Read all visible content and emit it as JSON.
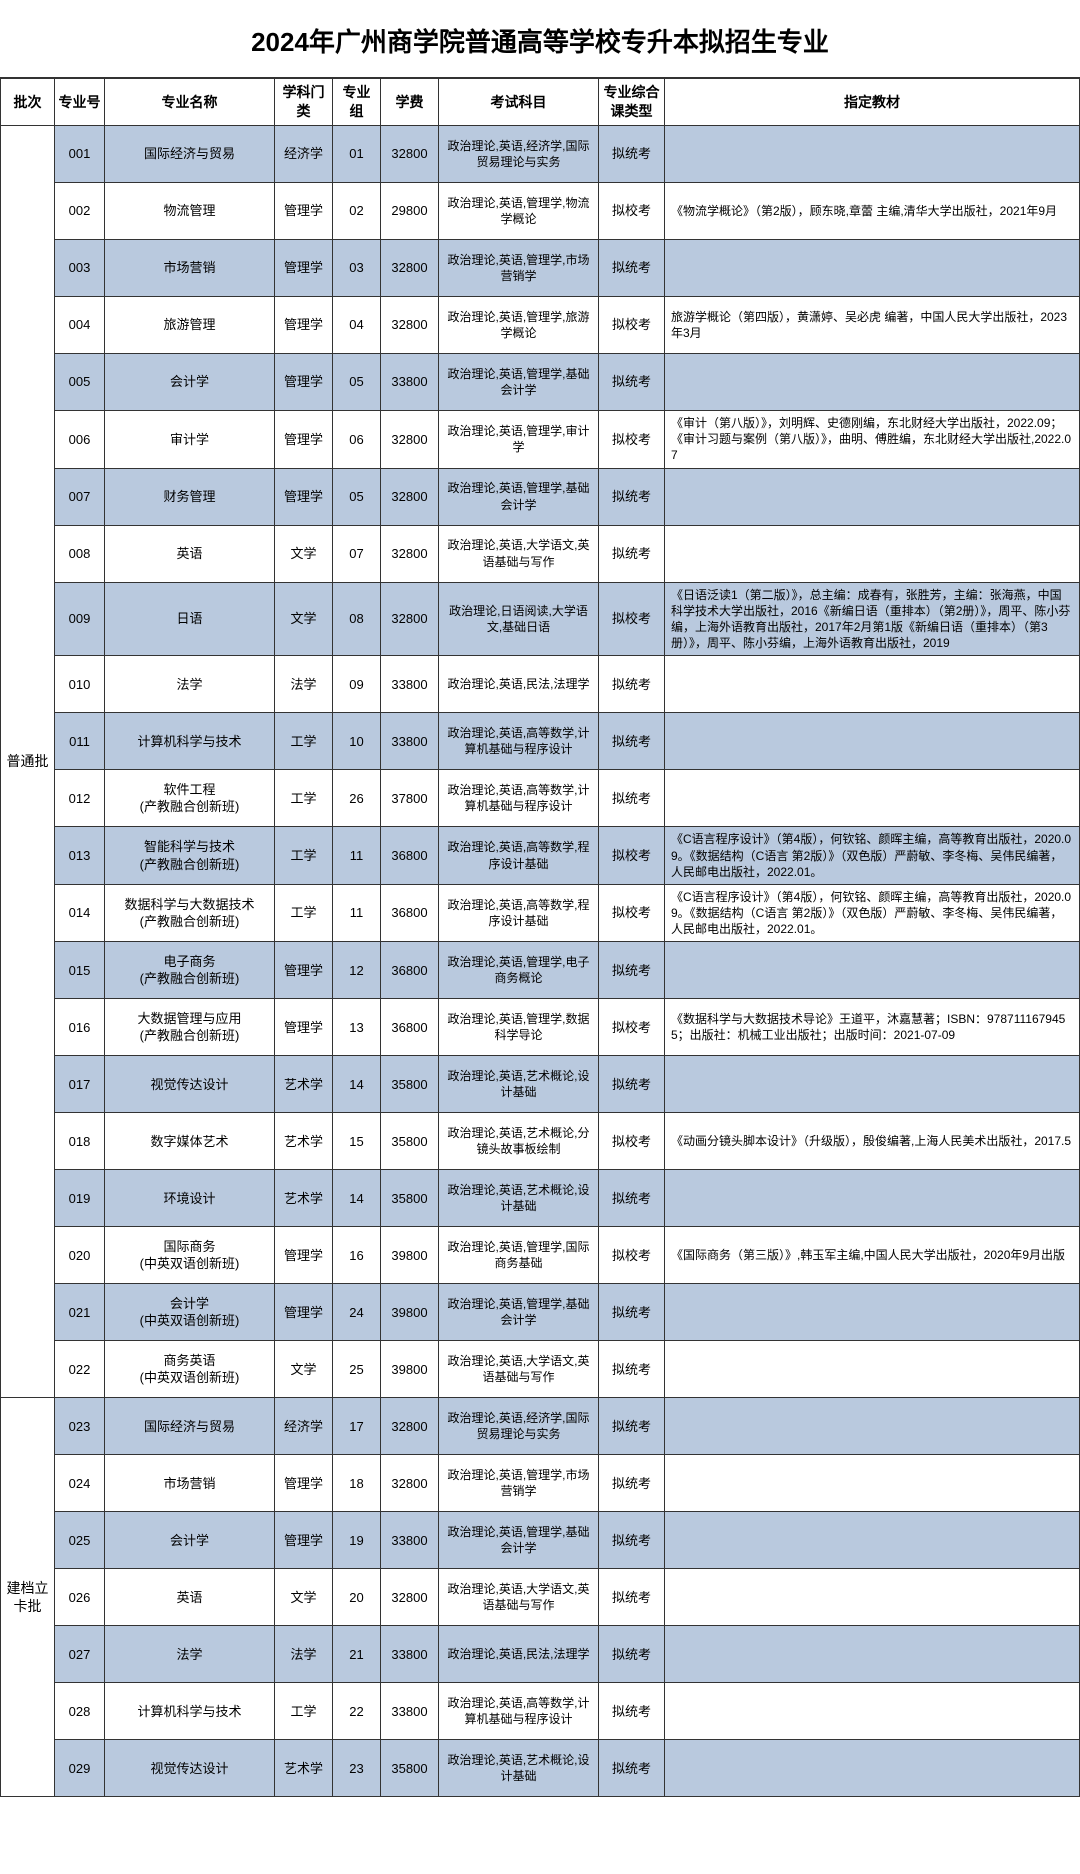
{
  "title": "2024年广州商学院普通高等学校专升本拟招生专业",
  "headers": {
    "batch": "批次",
    "code": "专业号",
    "name": "专业名称",
    "disc": "学科门类",
    "group": "专业组",
    "fee": "学费",
    "subj": "考试科目",
    "type": "专业综合课类型",
    "book": "指定教材"
  },
  "batch1_label": "普通批",
  "batch2_label": "建档立卡批",
  "rows1": [
    {
      "c": "001",
      "n": "国际经济与贸易",
      "d": "经济学",
      "g": "01",
      "f": "32800",
      "s": "政治理论,英语,经济学,国际贸易理论与实务",
      "t": "拟统考",
      "b": ""
    },
    {
      "c": "002",
      "n": "物流管理",
      "d": "管理学",
      "g": "02",
      "f": "29800",
      "s": "政治理论,英语,管理学,物流学概论",
      "t": "拟校考",
      "b": "《物流学概论》（第2版），顾东晓,章蕾 主编,清华大学出版社，2021年9月"
    },
    {
      "c": "003",
      "n": "市场营销",
      "d": "管理学",
      "g": "03",
      "f": "32800",
      "s": "政治理论,英语,管理学,市场营销学",
      "t": "拟统考",
      "b": ""
    },
    {
      "c": "004",
      "n": "旅游管理",
      "d": "管理学",
      "g": "04",
      "f": "32800",
      "s": "政治理论,英语,管理学,旅游学概论",
      "t": "拟校考",
      "b": "旅游学概论（第四版），黄潇婷、吴必虎 编著，中国人民大学出版社，2023年3月"
    },
    {
      "c": "005",
      "n": "会计学",
      "d": "管理学",
      "g": "05",
      "f": "33800",
      "s": "政治理论,英语,管理学,基础会计学",
      "t": "拟统考",
      "b": ""
    },
    {
      "c": "006",
      "n": "审计学",
      "d": "管理学",
      "g": "06",
      "f": "32800",
      "s": "政治理论,英语,管理学,审计学",
      "t": "拟校考",
      "b": "《审计（第八版）》，刘明辉、史德刚编，东北财经大学出版社，2022.09；《审计习题与案例（第八版）》，曲明、傅胜编，东北财经大学出版社,2022.07"
    },
    {
      "c": "007",
      "n": "财务管理",
      "d": "管理学",
      "g": "05",
      "f": "32800",
      "s": "政治理论,英语,管理学,基础会计学",
      "t": "拟统考",
      "b": ""
    },
    {
      "c": "008",
      "n": "英语",
      "d": "文学",
      "g": "07",
      "f": "32800",
      "s": "政治理论,英语,大学语文,英语基础与写作",
      "t": "拟统考",
      "b": ""
    },
    {
      "c": "009",
      "n": "日语",
      "d": "文学",
      "g": "08",
      "f": "32800",
      "s": "政治理论,日语阅读,大学语文,基础日语",
      "t": "拟校考",
      "b": "《日语泛读1（第二版）》，总主编：成春有，张胜芳，主编：张海燕，中国科学技术大学出版社，2016《新编日语（重排本）（第2册）》，周平、陈小芬编，上海外语教育出版社，2017年2月第1版《新编日语（重排本）（第3册）》，周平、陈小芬编，上海外语教育出版社，2019"
    },
    {
      "c": "010",
      "n": "法学",
      "d": "法学",
      "g": "09",
      "f": "33800",
      "s": "政治理论,英语,民法,法理学",
      "t": "拟统考",
      "b": ""
    },
    {
      "c": "011",
      "n": "计算机科学与技术",
      "d": "工学",
      "g": "10",
      "f": "33800",
      "s": "政治理论,英语,高等数学,计算机基础与程序设计",
      "t": "拟统考",
      "b": ""
    },
    {
      "c": "012",
      "n": "软件工程\n(产教融合创新班)",
      "d": "工学",
      "g": "26",
      "f": "37800",
      "s": "政治理论,英语,高等数学,计算机基础与程序设计",
      "t": "拟统考",
      "b": ""
    },
    {
      "c": "013",
      "n": "智能科学与技术\n(产教融合创新班)",
      "d": "工学",
      "g": "11",
      "f": "36800",
      "s": "政治理论,英语,高等数学,程序设计基础",
      "t": "拟校考",
      "b": "《C语言程序设计》（第4版），何钦铭、颜晖主编，高等教育出版社，2020.09。《数据结构（C语言 第2版）》（双色版）严蔚敏、李冬梅、吴伟民编著，人民邮电出版社，2022.01。"
    },
    {
      "c": "014",
      "n": "数据科学与大数据技术\n(产教融合创新班)",
      "d": "工学",
      "g": "11",
      "f": "36800",
      "s": "政治理论,英语,高等数学,程序设计基础",
      "t": "拟校考",
      "b": "《C语言程序设计》（第4版），何钦铭、颜晖主编，高等教育出版社，2020.09。《数据结构（C语言 第2版）》（双色版）严蔚敏、李冬梅、吴伟民编著，人民邮电出版社，2022.01。"
    },
    {
      "c": "015",
      "n": "电子商务\n(产教融合创新班)",
      "d": "管理学",
      "g": "12",
      "f": "36800",
      "s": "政治理论,英语,管理学,电子商务概论",
      "t": "拟统考",
      "b": ""
    },
    {
      "c": "016",
      "n": "大数据管理与应用\n(产教融合创新班)",
      "d": "管理学",
      "g": "13",
      "f": "36800",
      "s": "政治理论,英语,管理学,数据科学导论",
      "t": "拟校考",
      "b": "《数据科学与大数据技术导论》王道平，沐嘉慧著；ISBN：9787111679455；出版社：机械工业出版社；出版时间：2021-07-09"
    },
    {
      "c": "017",
      "n": "视觉传达设计",
      "d": "艺术学",
      "g": "14",
      "f": "35800",
      "s": "政治理论,英语,艺术概论,设计基础",
      "t": "拟统考",
      "b": ""
    },
    {
      "c": "018",
      "n": "数字媒体艺术",
      "d": "艺术学",
      "g": "15",
      "f": "35800",
      "s": "政治理论,英语,艺术概论,分镜头故事板绘制",
      "t": "拟校考",
      "b": "《动画分镜头脚本设计》（升级版），殷俊编著,上海人民美术出版社，2017.5"
    },
    {
      "c": "019",
      "n": "环境设计",
      "d": "艺术学",
      "g": "14",
      "f": "35800",
      "s": "政治理论,英语,艺术概论,设计基础",
      "t": "拟统考",
      "b": ""
    },
    {
      "c": "020",
      "n": "国际商务\n(中英双语创新班)",
      "d": "管理学",
      "g": "16",
      "f": "39800",
      "s": "政治理论,英语,管理学,国际商务基础",
      "t": "拟校考",
      "b": "《国际商务（第三版）》,韩玉军主编,中国人民大学出版社，2020年9月出版"
    },
    {
      "c": "021",
      "n": "会计学\n(中英双语创新班)",
      "d": "管理学",
      "g": "24",
      "f": "39800",
      "s": "政治理论,英语,管理学,基础会计学",
      "t": "拟统考",
      "b": ""
    },
    {
      "c": "022",
      "n": "商务英语\n(中英双语创新班)",
      "d": "文学",
      "g": "25",
      "f": "39800",
      "s": "政治理论,英语,大学语文,英语基础与写作",
      "t": "拟统考",
      "b": ""
    }
  ],
  "rows2": [
    {
      "c": "023",
      "n": "国际经济与贸易",
      "d": "经济学",
      "g": "17",
      "f": "32800",
      "s": "政治理论,英语,经济学,国际贸易理论与实务",
      "t": "拟统考",
      "b": ""
    },
    {
      "c": "024",
      "n": "市场营销",
      "d": "管理学",
      "g": "18",
      "f": "32800",
      "s": "政治理论,英语,管理学,市场营销学",
      "t": "拟统考",
      "b": ""
    },
    {
      "c": "025",
      "n": "会计学",
      "d": "管理学",
      "g": "19",
      "f": "33800",
      "s": "政治理论,英语,管理学,基础会计学",
      "t": "拟统考",
      "b": ""
    },
    {
      "c": "026",
      "n": "英语",
      "d": "文学",
      "g": "20",
      "f": "32800",
      "s": "政治理论,英语,大学语文,英语基础与写作",
      "t": "拟统考",
      "b": ""
    },
    {
      "c": "027",
      "n": "法学",
      "d": "法学",
      "g": "21",
      "f": "33800",
      "s": "政治理论,英语,民法,法理学",
      "t": "拟统考",
      "b": ""
    },
    {
      "c": "028",
      "n": "计算机科学与技术",
      "d": "工学",
      "g": "22",
      "f": "33800",
      "s": "政治理论,英语,高等数学,计算机基础与程序设计",
      "t": "拟统考",
      "b": ""
    },
    {
      "c": "029",
      "n": "视觉传达设计",
      "d": "艺术学",
      "g": "23",
      "f": "35800",
      "s": "政治理论,英语,艺术概论,设计基础",
      "t": "拟统考",
      "b": ""
    }
  ],
  "style": {
    "shade_color": "#b9c9de",
    "border_color": "#333333",
    "row_min_height": 48
  }
}
